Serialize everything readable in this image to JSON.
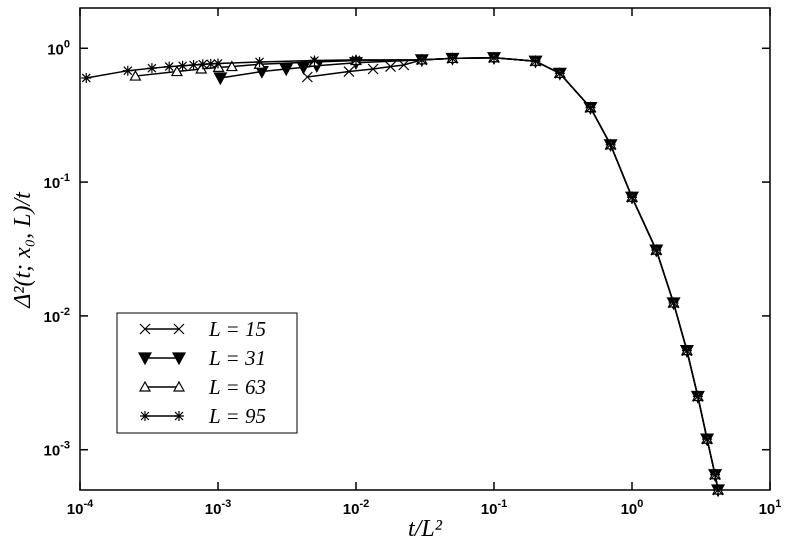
{
  "chart_data": {
    "type": "line",
    "xlabel": "t/L²",
    "ylabel": "Δ²(t; x₀, L)/t",
    "xscale": "log",
    "yscale": "log",
    "xlim": [
      0.0001,
      10
    ],
    "ylim": [
      0.0005,
      2
    ],
    "xticks": [
      {
        "value": 0.0001,
        "label": "10",
        "exponent": "-4"
      },
      {
        "value": 0.001,
        "label": "10",
        "exponent": "-3"
      },
      {
        "value": 0.01,
        "label": "10",
        "exponent": "-2"
      },
      {
        "value": 0.1,
        "label": "10",
        "exponent": "-1"
      },
      {
        "value": 1,
        "label": "10",
        "exponent": "0"
      },
      {
        "value": 10,
        "label": "10",
        "exponent": "1"
      }
    ],
    "yticks": [
      {
        "value": 0.001,
        "label": "10",
        "exponent": "-3"
      },
      {
        "value": 0.01,
        "label": "10",
        "exponent": "-2"
      },
      {
        "value": 0.1,
        "label": "10",
        "exponent": "-1"
      },
      {
        "value": 1,
        "label": "10",
        "exponent": "0"
      }
    ],
    "legend": "lower left",
    "series": [
      {
        "name": "L = 15",
        "color": "#000000",
        "marker": "x",
        "x": [
          0.00444,
          0.00889,
          0.0133,
          0.0178,
          0.0222,
          0.03,
          0.05,
          0.1,
          0.2,
          0.3,
          0.5,
          0.7,
          1.0,
          1.5,
          2.0,
          2.5,
          3.0,
          3.5,
          4.0,
          4.2
        ],
        "values": [
          0.61,
          0.67,
          0.7,
          0.73,
          0.75,
          0.82,
          0.84,
          0.85,
          0.8,
          0.65,
          0.36,
          0.19,
          0.077,
          0.031,
          0.0125,
          0.0055,
          0.0025,
          0.0012,
          0.00065,
          0.0005
        ]
      },
      {
        "name": "L = 31",
        "color": "#000000",
        "marker": "triangle-down-filled",
        "x": [
          0.00104,
          0.00208,
          0.00312,
          0.00416,
          0.0052,
          0.01,
          0.03,
          0.05,
          0.1,
          0.2,
          0.3,
          0.5,
          0.7,
          1.0,
          1.5,
          2.0,
          2.5,
          3.0,
          3.5,
          4.0,
          4.2
        ],
        "values": [
          0.6,
          0.67,
          0.7,
          0.72,
          0.74,
          0.78,
          0.82,
          0.84,
          0.85,
          0.8,
          0.65,
          0.36,
          0.19,
          0.077,
          0.031,
          0.0125,
          0.0055,
          0.0025,
          0.0012,
          0.00065,
          0.0005
        ]
      },
      {
        "name": "L = 63",
        "color": "#000000",
        "marker": "triangle-up-open",
        "x": [
          0.000252,
          0.000504,
          0.000756,
          0.00101,
          0.00126,
          0.002,
          0.005,
          0.01,
          0.03,
          0.05,
          0.1,
          0.2,
          0.3,
          0.5,
          0.7,
          1.0,
          1.5,
          2.0,
          2.5,
          3.0,
          3.5,
          4.0,
          4.2
        ],
        "values": [
          0.62,
          0.67,
          0.7,
          0.72,
          0.73,
          0.76,
          0.79,
          0.81,
          0.82,
          0.84,
          0.85,
          0.8,
          0.65,
          0.36,
          0.19,
          0.077,
          0.031,
          0.0125,
          0.0055,
          0.0025,
          0.0012,
          0.00065,
          0.0005
        ]
      },
      {
        "name": "L = 95",
        "color": "#000000",
        "marker": "asterisk",
        "x": [
          0.000111,
          0.000222,
          0.000332,
          0.000443,
          0.000554,
          0.000665,
          0.000776,
          0.000886,
          0.001,
          0.002,
          0.005,
          0.01,
          0.03,
          0.05,
          0.1,
          0.2,
          0.3,
          0.5,
          0.7,
          1.0,
          1.5,
          2.0,
          2.5,
          3.0,
          3.5,
          4.0,
          4.2
        ],
        "values": [
          0.6,
          0.68,
          0.71,
          0.73,
          0.74,
          0.75,
          0.76,
          0.765,
          0.77,
          0.79,
          0.81,
          0.82,
          0.82,
          0.84,
          0.85,
          0.8,
          0.65,
          0.36,
          0.19,
          0.077,
          0.031,
          0.0125,
          0.0055,
          0.0025,
          0.0012,
          0.00065,
          0.0005
        ]
      }
    ]
  }
}
